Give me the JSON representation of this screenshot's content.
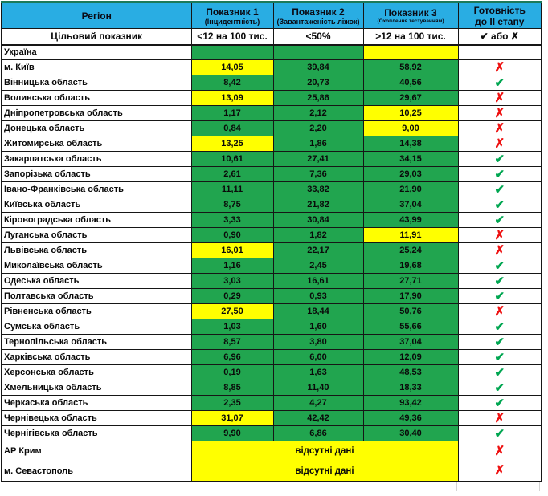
{
  "colors": {
    "header_cyan": "#29ADE3",
    "cell_green": "#21A54F",
    "cell_yellow": "#FFFF00",
    "cell_gray": "#BFBFBF",
    "check_green": "#00A651",
    "cross_red": "#EE1111",
    "border_dark": "#161616",
    "top_accent": "#1C7A5A"
  },
  "marks": {
    "check": "✔",
    "cross": "✗"
  },
  "table": {
    "header": {
      "region": "Регіон",
      "indicators": [
        {
          "title": "Показник 1",
          "subtitle": "(Інцидентність)"
        },
        {
          "title": "Показник 2",
          "subtitle": "(Завантаженість ліжок)"
        },
        {
          "title": "Показник 3",
          "subtitle": "(Охоплення тестуванням)"
        }
      ],
      "readiness_line1": "Готовність",
      "readiness_line2": "до ІІ етапу"
    },
    "target_row": {
      "label": "Цільовий показник",
      "indicator1": "<12 на 100 тис.",
      "indicator2": "<50%",
      "indicator3": ">12 на 100 тис.",
      "readiness": "✔ або ✗"
    },
    "no_data_text": "відсутні дані",
    "rows": [
      {
        "region": "Україна",
        "type": "summary"
      },
      {
        "region": "м. Київ",
        "v1": "14,05",
        "c1": "y",
        "v2": "39,84",
        "c2": "g",
        "v3": "58,92",
        "c3": "g",
        "ready": "cross"
      },
      {
        "region": "Вінницька область",
        "v1": "8,42",
        "c1": "g",
        "v2": "20,73",
        "c2": "g",
        "v3": "40,56",
        "c3": "g",
        "ready": "check"
      },
      {
        "region": "Волинська область",
        "v1": "13,09",
        "c1": "y",
        "v2": "25,86",
        "c2": "g",
        "v3": "29,67",
        "c3": "g",
        "ready": "cross"
      },
      {
        "region": "Дніпропетровська область",
        "v1": "1,17",
        "c1": "g",
        "v2": "2,12",
        "c2": "g",
        "v3": "10,25",
        "c3": "y",
        "ready": "cross"
      },
      {
        "region": "Донецька область",
        "v1": "0,84",
        "c1": "g",
        "v2": "2,20",
        "c2": "g",
        "v3": "9,00",
        "c3": "y",
        "ready": "cross"
      },
      {
        "region": "Житомирська область",
        "v1": "13,25",
        "c1": "y",
        "v2": "1,86",
        "c2": "g",
        "v3": "14,38",
        "c3": "g",
        "ready": "cross"
      },
      {
        "region": "Закарпатська область",
        "v1": "10,61",
        "c1": "g",
        "v2": "27,41",
        "c2": "g",
        "v3": "34,15",
        "c3": "g",
        "ready": "check"
      },
      {
        "region": "Запорізька область",
        "v1": "2,61",
        "c1": "g",
        "v2": "7,36",
        "c2": "g",
        "v3": "29,03",
        "c3": "g",
        "ready": "check"
      },
      {
        "region": "Івано-Франківська область",
        "v1": "11,11",
        "c1": "g",
        "v2": "33,82",
        "c2": "g",
        "v3": "21,90",
        "c3": "g",
        "ready": "check"
      },
      {
        "region": "Київська область",
        "v1": "8,75",
        "c1": "g",
        "v2": "21,82",
        "c2": "g",
        "v3": "37,04",
        "c3": "g",
        "ready": "check"
      },
      {
        "region": "Кіровоградська область",
        "v1": "3,33",
        "c1": "g",
        "v2": "30,84",
        "c2": "g",
        "v3": "43,99",
        "c3": "g",
        "ready": "check"
      },
      {
        "region": "Луганська область",
        "v1": "0,90",
        "c1": "g",
        "v2": "1,82",
        "c2": "g",
        "v3": "11,91",
        "c3": "y",
        "ready": "cross"
      },
      {
        "region": "Львівська область",
        "v1": "16,01",
        "c1": "y",
        "v2": "22,17",
        "c2": "g",
        "v3": "25,24",
        "c3": "g",
        "ready": "cross"
      },
      {
        "region": "Миколаївська область",
        "v1": "1,16",
        "c1": "g",
        "v2": "2,45",
        "c2": "g",
        "v3": "19,68",
        "c3": "g",
        "ready": "check"
      },
      {
        "region": "Одеська область",
        "v1": "3,03",
        "c1": "g",
        "v2": "16,61",
        "c2": "g",
        "v3": "27,71",
        "c3": "g",
        "ready": "check"
      },
      {
        "region": "Полтавська область",
        "v1": "0,29",
        "c1": "g",
        "v2": "0,93",
        "c2": "g",
        "v3": "17,90",
        "c3": "g",
        "ready": "check"
      },
      {
        "region": "Рівненська область",
        "v1": "27,50",
        "c1": "y",
        "v2": "18,44",
        "c2": "g",
        "v3": "50,76",
        "c3": "g",
        "ready": "cross"
      },
      {
        "region": "Сумська область",
        "v1": "1,03",
        "c1": "g",
        "v2": "1,60",
        "c2": "g",
        "v3": "55,66",
        "c3": "g",
        "ready": "check"
      },
      {
        "region": "Тернопільська область",
        "v1": "8,57",
        "c1": "g",
        "v2": "3,80",
        "c2": "g",
        "v3": "37,04",
        "c3": "g",
        "ready": "check"
      },
      {
        "region": "Харківська область",
        "v1": "6,96",
        "c1": "g",
        "v2": "6,00",
        "c2": "g",
        "v3": "12,09",
        "c3": "g",
        "ready": "check"
      },
      {
        "region": "Херсонська область",
        "v1": "0,19",
        "c1": "g",
        "v2": "1,63",
        "c2": "g",
        "v3": "48,53",
        "c3": "g",
        "ready": "check"
      },
      {
        "region": "Хмельницька область",
        "v1": "8,85",
        "c1": "g",
        "v2": "11,40",
        "c2": "g",
        "v3": "18,33",
        "c3": "g",
        "ready": "check"
      },
      {
        "region": "Черкаська область",
        "v1": "2,35",
        "c1": "g",
        "v2": "4,27",
        "c2": "g",
        "v3": "93,42",
        "c3": "g",
        "ready": "check"
      },
      {
        "region": "Чернівецька область",
        "v1": "31,07",
        "c1": "y",
        "v2": "42,42",
        "c2": "g",
        "v3": "49,36",
        "c3": "g",
        "ready": "cross"
      },
      {
        "region": "Чернігівська область",
        "v1": "9,90",
        "c1": "g",
        "v2": "6,86",
        "c2": "g",
        "v3": "30,40",
        "c3": "g",
        "ready": "check"
      },
      {
        "region": "АР Крим",
        "type": "nodata",
        "ready": "cross"
      },
      {
        "region": "м. Севастополь",
        "type": "nodata",
        "ready": "cross"
      }
    ]
  }
}
